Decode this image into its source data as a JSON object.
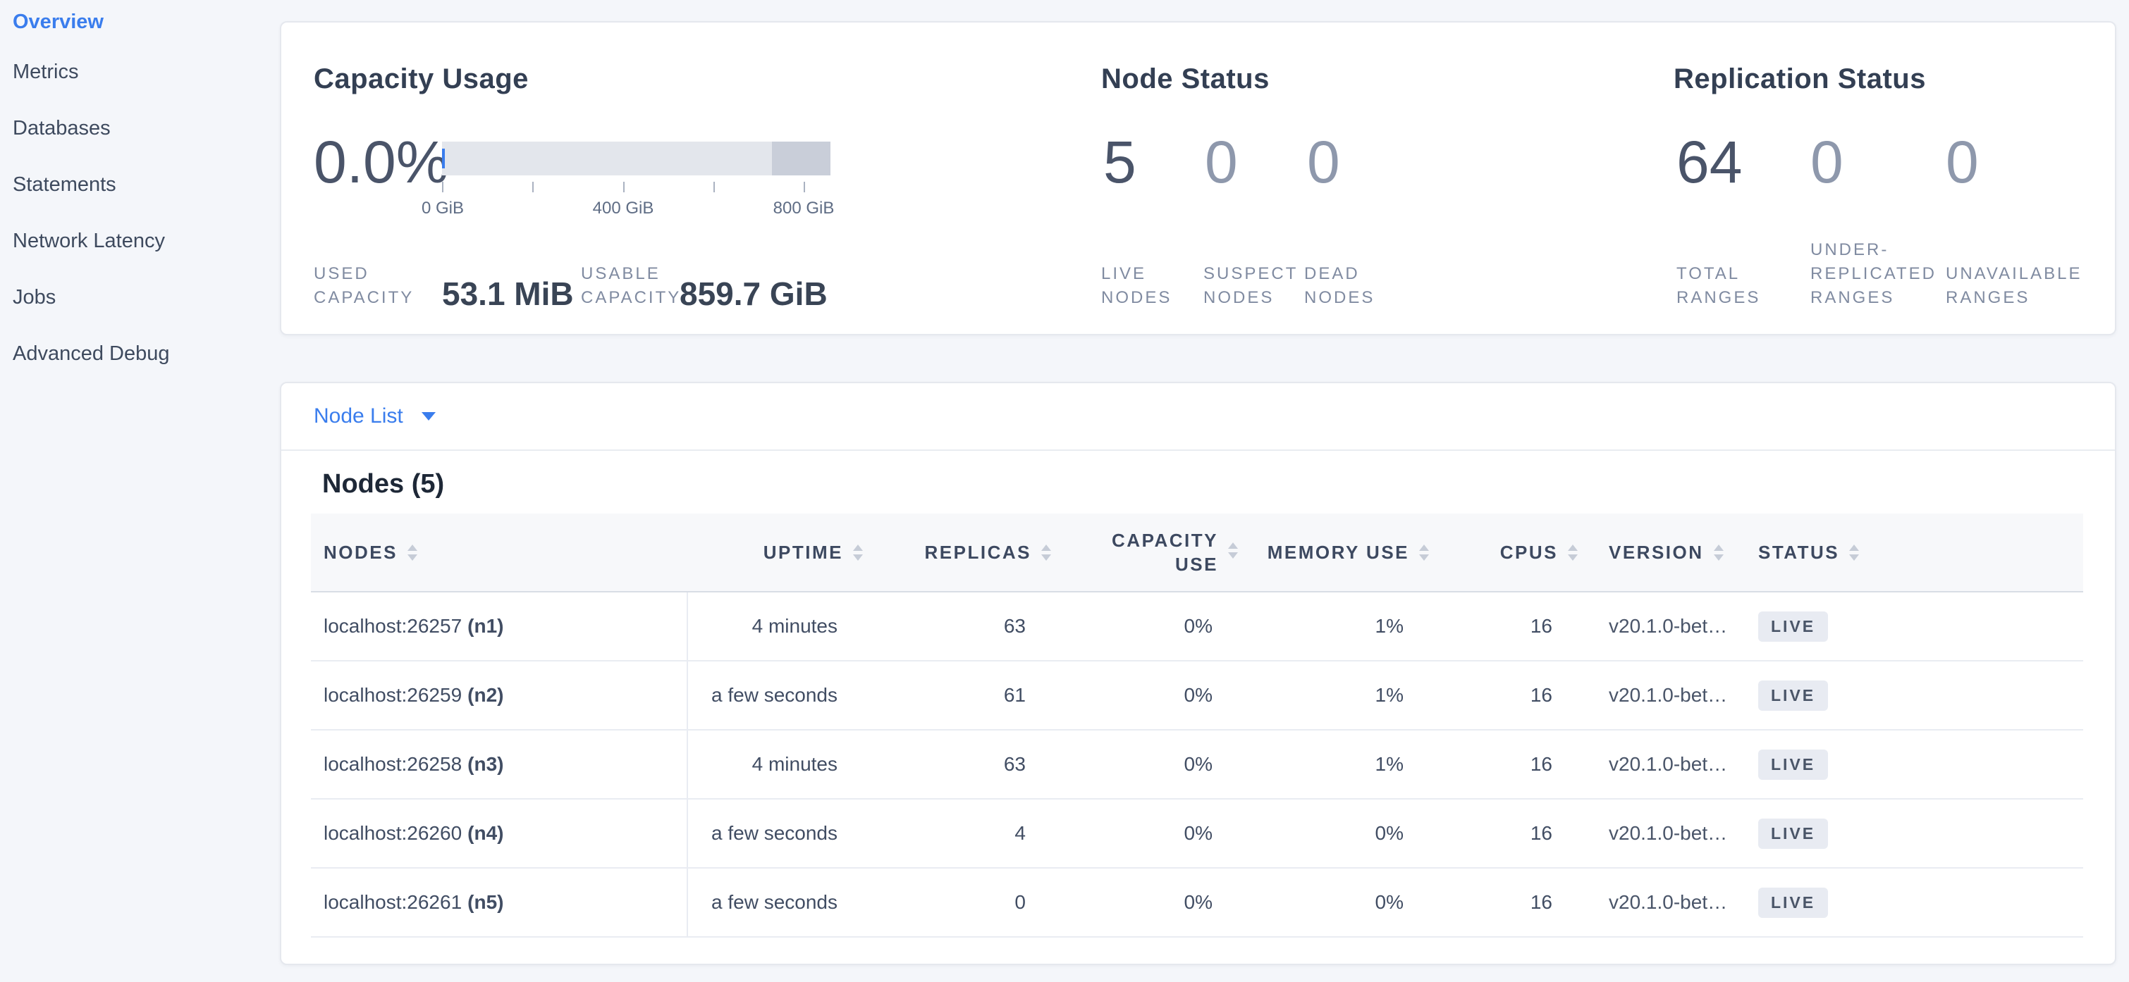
{
  "colors": {
    "accent_blue": "#3a7ded",
    "badge_bg": "#e8ebf2",
    "gauge_fill": "#e3e6ec",
    "gauge_secondary": "#c9ced9"
  },
  "sidebar": {
    "items": [
      {
        "label": "Overview",
        "active": true
      },
      {
        "label": "Metrics",
        "active": false
      },
      {
        "label": "Databases",
        "active": false
      },
      {
        "label": "Statements",
        "active": false
      },
      {
        "label": "Network Latency",
        "active": false
      },
      {
        "label": "Jobs",
        "active": false
      },
      {
        "label": "Advanced Debug",
        "active": false
      }
    ]
  },
  "capacity": {
    "title": "Capacity Usage",
    "percent": "0.0%",
    "tick_labels": [
      "0 GiB",
      "400 GiB",
      "800 GiB"
    ],
    "used": {
      "label": "USED CAPACITY",
      "value": "53.1 MiB"
    },
    "usable": {
      "label": "USABLE CAPACITY",
      "value": "859.7 GiB"
    }
  },
  "node_status": {
    "title": "Node Status",
    "stats": [
      {
        "value": "5",
        "label": "LIVE NODES"
      },
      {
        "value": "0",
        "label": "SUSPECT NODES"
      },
      {
        "value": "0",
        "label": "DEAD NODES"
      }
    ]
  },
  "replication_status": {
    "title": "Replication Status",
    "stats": [
      {
        "value": "64",
        "label": "TOTAL RANGES"
      },
      {
        "value": "0",
        "label": "UNDER-REPLICATED RANGES"
      },
      {
        "value": "0",
        "label": "UNAVAILABLE RANGES"
      }
    ]
  },
  "node_list": {
    "selector_label": "Node List",
    "heading": "Nodes (5)",
    "columns": [
      "NODES",
      "UPTIME",
      "REPLICAS",
      "CAPACITY USE",
      "MEMORY USE",
      "CPUS",
      "VERSION",
      "STATUS"
    ],
    "rows": [
      {
        "address": "localhost:26257",
        "id": "(n1)",
        "uptime": "4 minutes",
        "replicas": "63",
        "capacity_use": "0%",
        "memory_use": "1%",
        "cpus": "16",
        "version": "v20.1.0-bet…",
        "status": "LIVE"
      },
      {
        "address": "localhost:26259",
        "id": "(n2)",
        "uptime": "a few seconds",
        "replicas": "61",
        "capacity_use": "0%",
        "memory_use": "1%",
        "cpus": "16",
        "version": "v20.1.0-bet…",
        "status": "LIVE"
      },
      {
        "address": "localhost:26258",
        "id": "(n3)",
        "uptime": "4 minutes",
        "replicas": "63",
        "capacity_use": "0%",
        "memory_use": "1%",
        "cpus": "16",
        "version": "v20.1.0-bet…",
        "status": "LIVE"
      },
      {
        "address": "localhost:26260",
        "id": "(n4)",
        "uptime": "a few seconds",
        "replicas": "4",
        "capacity_use": "0%",
        "memory_use": "0%",
        "cpus": "16",
        "version": "v20.1.0-bet…",
        "status": "LIVE"
      },
      {
        "address": "localhost:26261",
        "id": "(n5)",
        "uptime": "a few seconds",
        "replicas": "0",
        "capacity_use": "0%",
        "memory_use": "0%",
        "cpus": "16",
        "version": "v20.1.0-bet…",
        "status": "LIVE"
      }
    ]
  }
}
